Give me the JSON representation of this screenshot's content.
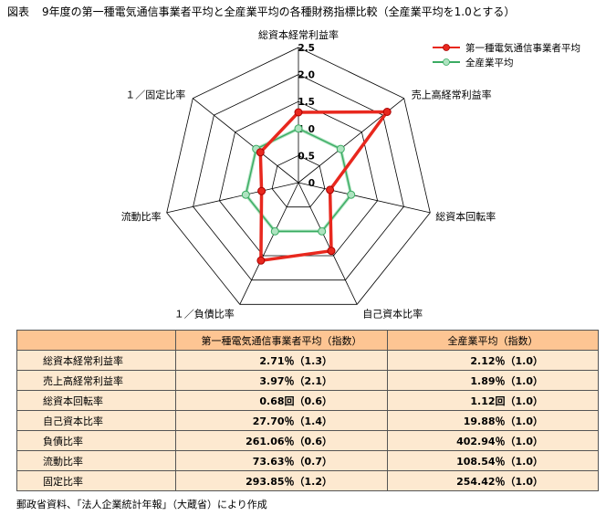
{
  "header": {
    "figure_label": "図表",
    "title": "9年度の第一種電気通信事業者平均と全産業平均の各種財務指標比較（全産業平均を1.0とする）"
  },
  "colors": {
    "series1": "#e8281e",
    "series2": "#3aab62",
    "grid": "#000000",
    "table_header_bg": "#fdc593",
    "table_row_bg": "#fde9d0"
  },
  "chart_data": {
    "type": "radar",
    "axes": [
      "総資本経常利益率",
      "売上高経常利益率",
      "総資本回転率",
      "自己資本比率",
      "１／負債比率",
      "流動比率",
      "１／固定比率"
    ],
    "scale": {
      "min": 0,
      "max": 2.5,
      "step": 0.5,
      "tick_labels": [
        "0",
        "0.5",
        "1.0",
        "1.5",
        "2.0",
        "2.5"
      ]
    },
    "series": [
      {
        "name": "第一種電気通信事業者平均",
        "values": [
          1.3,
          2.1,
          0.6,
          1.4,
          1.6,
          0.7,
          0.9
        ],
        "color": "#e8281e",
        "marker": "circle"
      },
      {
        "name": "全産業平均",
        "values": [
          1.0,
          1.0,
          1.0,
          1.0,
          1.0,
          1.0,
          1.0
        ],
        "color": "#3aab62",
        "marker": "circle"
      }
    ],
    "legend_position": "top-right",
    "grid": true
  },
  "table": {
    "headers": [
      "",
      "第一種電気通信事業者平均（指数）",
      "全産業平均（指数）"
    ],
    "rows": [
      [
        "総資本経常利益率",
        "2.71％（1.3）",
        "2.12％（1.0）"
      ],
      [
        "売上高経常利益率",
        "3.97％（2.1）",
        "1.89％（1.0）"
      ],
      [
        "総資本回転率",
        "0.68回（0.6）",
        "1.12回（1.0）"
      ],
      [
        "自己資本比率",
        "27.70％（1.4）",
        "19.88％（1.0）"
      ],
      [
        "負債比率",
        "261.06％（0.6）",
        "402.94％（1.0）"
      ],
      [
        "流動比率",
        "73.63％（0.7）",
        "108.54％（1.0）"
      ],
      [
        "固定比率",
        "293.85％（1.2）",
        "254.42％（1.0）"
      ]
    ]
  },
  "source": "郵政省資料、「法人企業統計年報」（大蔵省）により作成"
}
